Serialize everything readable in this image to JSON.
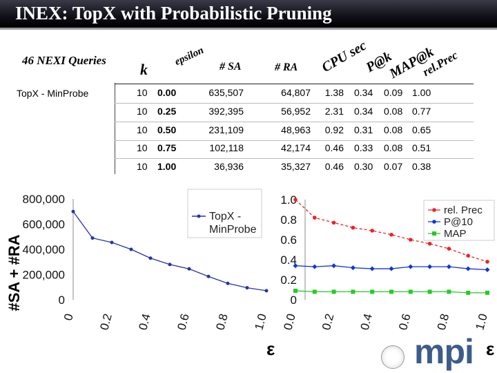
{
  "title": "INEX: TopX with Probabilistic Pruning",
  "table": {
    "corner_label": "46 NEXI Queries",
    "row_label": "TopX - MinProbe",
    "headers": [
      "k",
      "epsilon",
      "# SA",
      "# RA",
      "CPU sec",
      "P@k",
      "MAP@k",
      "rel.Prec"
    ],
    "rows": [
      [
        "10",
        "0.00",
        "635,507",
        "64,807",
        "1.38",
        "0.34",
        "0.09",
        "1.00"
      ],
      [
        "10",
        "0.25",
        "392,395",
        "56,952",
        "2.31",
        "0.34",
        "0.08",
        "0.77"
      ],
      [
        "10",
        "0.50",
        "231,109",
        "48,963",
        "0.92",
        "0.31",
        "0.08",
        "0.65"
      ],
      [
        "10",
        "0.75",
        "102,118",
        "42,174",
        "0.46",
        "0.33",
        "0.08",
        "0.51"
      ],
      [
        "10",
        "1.00",
        "36,936",
        "35,327",
        "0.46",
        "0.30",
        "0.07",
        "0.38"
      ]
    ]
  },
  "chart_data": [
    {
      "type": "line",
      "ylabel": "#SA + #RA",
      "xlabel": "ε",
      "xlim": [
        0,
        1.0
      ],
      "ylim": [
        0,
        800000
      ],
      "x_ticks": [
        "0",
        "0.2",
        "0.4",
        "0.6",
        "0.8",
        "1.0"
      ],
      "y_ticks": [
        "0",
        "200,000",
        "400,000",
        "600,000",
        "800,000"
      ],
      "legend_position": "top-right",
      "series": [
        {
          "name": "TopX - MinProbe",
          "color": "#2233aa",
          "x": [
            0,
            0.1,
            0.2,
            0.3,
            0.4,
            0.5,
            0.6,
            0.7,
            0.8,
            0.9,
            1.0
          ],
          "y": [
            700000,
            490000,
            455000,
            400000,
            330000,
            280000,
            245000,
            185000,
            130000,
            95000,
            72000
          ]
        }
      ]
    },
    {
      "type": "line",
      "xlabel": "ε",
      "xlim": [
        0,
        1.0
      ],
      "ylim": [
        0,
        1.0
      ],
      "x_ticks": [
        "0.0",
        "0.2",
        "0.4",
        "0.6",
        "0.8",
        "1.0"
      ],
      "y_ticks": [
        "0",
        "0.2",
        "0.4",
        "0.6",
        "0.8",
        "1.0"
      ],
      "legend_position": "top-right",
      "series": [
        {
          "name": "rel. Prec",
          "color": "#ee2222",
          "x": [
            0,
            0.1,
            0.2,
            0.3,
            0.4,
            0.5,
            0.6,
            0.7,
            0.8,
            0.9,
            1.0
          ],
          "y": [
            1.0,
            0.82,
            0.77,
            0.72,
            0.69,
            0.65,
            0.6,
            0.56,
            0.51,
            0.44,
            0.38
          ]
        },
        {
          "name": "P@10",
          "color": "#1133dd",
          "x": [
            0,
            0.1,
            0.2,
            0.3,
            0.4,
            0.5,
            0.6,
            0.7,
            0.8,
            0.9,
            1.0
          ],
          "y": [
            0.34,
            0.33,
            0.34,
            0.32,
            0.31,
            0.31,
            0.33,
            0.33,
            0.33,
            0.31,
            0.3
          ]
        },
        {
          "name": "MAP",
          "color": "#22cc22",
          "x": [
            0,
            0.1,
            0.2,
            0.3,
            0.4,
            0.5,
            0.6,
            0.7,
            0.8,
            0.9,
            1.0
          ],
          "y": [
            0.09,
            0.08,
            0.08,
            0.08,
            0.08,
            0.08,
            0.08,
            0.08,
            0.08,
            0.07,
            0.07
          ]
        }
      ]
    }
  ],
  "logo_text": "mpi"
}
